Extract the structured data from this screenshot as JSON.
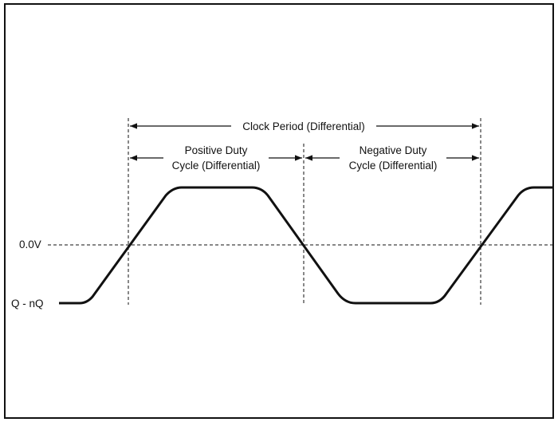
{
  "labels": {
    "zero_level": "0.0V",
    "signal_name": "Q - nQ",
    "clock_period": "Clock Period (Differential)",
    "positive_duty_line1": "Positive Duty",
    "positive_duty_line2": "Cycle (Differential)",
    "negative_duty_line1": "Negative Duty",
    "negative_duty_line2": "Cycle (Differential)"
  },
  "colors": {
    "ink": "#111111",
    "background": "#ffffff"
  }
}
